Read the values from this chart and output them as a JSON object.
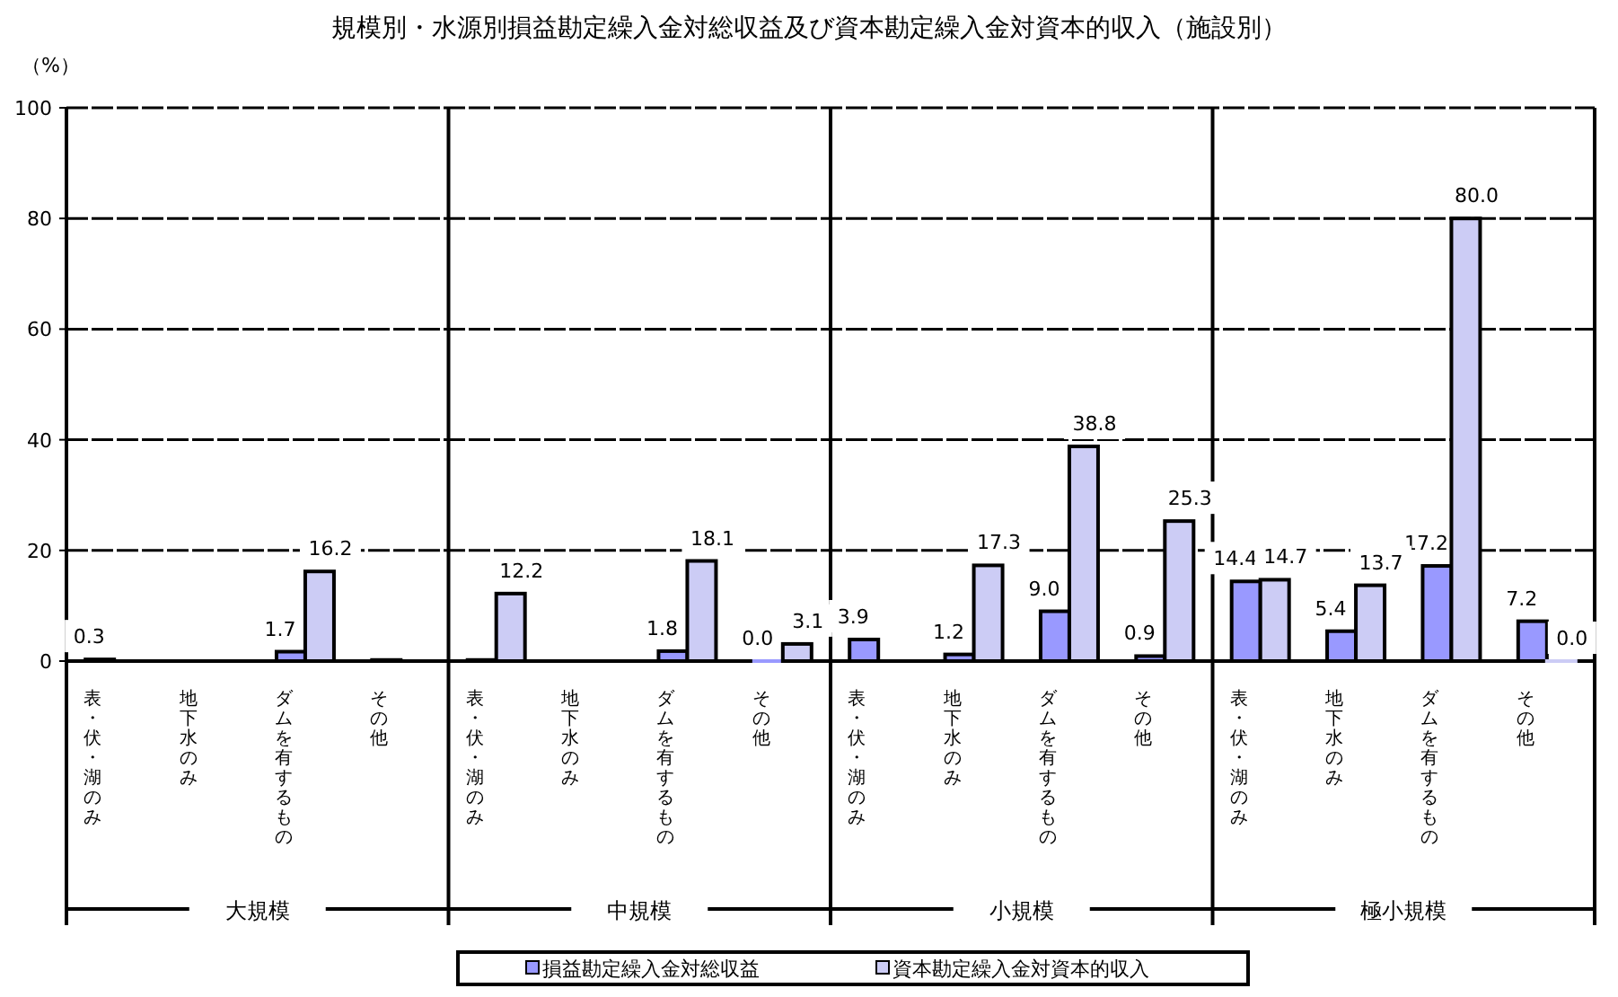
{
  "chart_data": {
    "type": "bar",
    "title": "規模別・水源別損益勘定繰入金対総収益及び資本勘定繰入金対資本的収入（施設別）",
    "ylabel": "（%）",
    "categories": [
      "表・伏・湖のみ",
      "地下水のみ",
      "ダムを有するもの",
      "その他",
      "表・伏・湖のみ",
      "地下水のみ",
      "ダムを有するもの",
      "その他",
      "表・伏・湖のみ",
      "地下水のみ",
      "ダムを有するもの",
      "その他",
      "表・伏・湖のみ",
      "地下水のみ",
      "ダムを有するもの",
      "その他"
    ],
    "annotations": [
      "大規模",
      "中規模",
      "小規模",
      "極小規模"
    ],
    "series": [
      {
        "name": "損益勘定繰入金対総収益",
        "color": "#9999ff",
        "values": [
          0.3,
          null,
          1.7,
          0.2,
          0.2,
          null,
          1.8,
          0.0,
          3.9,
          1.2,
          9.0,
          0.9,
          14.4,
          5.4,
          17.2,
          7.2
        ],
        "value_labels": [
          "0.3",
          null,
          "1.7",
          null,
          null,
          null,
          "1.8",
          "0.0",
          "3.9",
          "1.2",
          "9.0",
          "0.9",
          "14.4",
          "5.4",
          "17.2",
          "7.2"
        ]
      },
      {
        "name": "資本勘定繰入金対資本的収入",
        "color": "#ccccf5",
        "values": [
          null,
          null,
          16.2,
          null,
          12.2,
          null,
          18.1,
          3.1,
          null,
          17.3,
          38.8,
          25.3,
          14.7,
          13.7,
          80.0,
          0.0
        ],
        "value_labels": [
          null,
          null,
          "16.2",
          null,
          "12.2",
          null,
          "18.1",
          "3.1",
          null,
          "17.3",
          "38.8",
          "25.3",
          "14.7",
          "13.7",
          "80.0",
          "0.0"
        ]
      }
    ],
    "ylim": [
      0,
      100
    ],
    "yticks": [
      0,
      20,
      40,
      60,
      80,
      100
    ],
    "grid": "y",
    "legend": "bottom"
  }
}
